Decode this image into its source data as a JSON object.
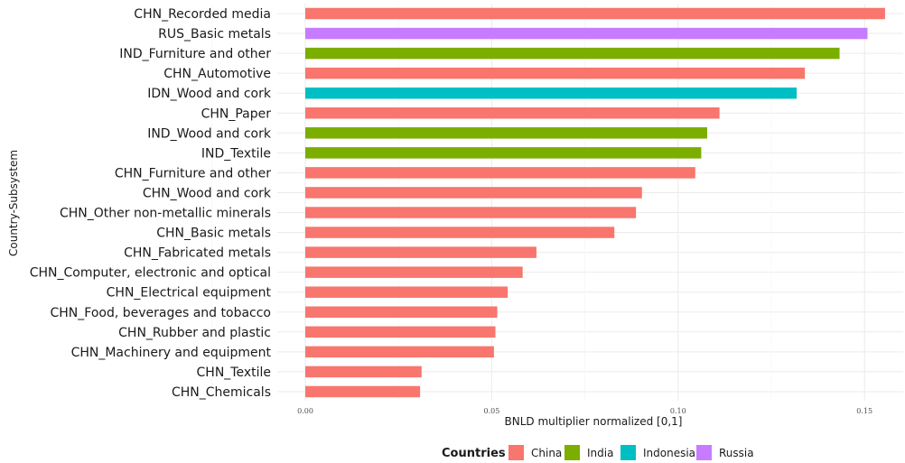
{
  "chart_data": {
    "type": "bar",
    "orientation": "horizontal",
    "title": "",
    "xlabel": "BNLD multiplier normalized [0,1]",
    "ylabel": "Country-Subsystem",
    "xlim": [
      0,
      0.156
    ],
    "x_ticks": [
      0.0,
      0.05,
      0.1,
      0.15
    ],
    "x_tick_labels": [
      "0.00",
      "0.05",
      "0.10",
      "0.15"
    ],
    "grid": true,
    "legend": {
      "title": "Countries",
      "placement": "bottom",
      "entries": [
        {
          "name": "China",
          "color": "#F8766D"
        },
        {
          "name": "India",
          "color": "#7CAE00"
        },
        {
          "name": "Indonesia",
          "color": "#00BFC4"
        },
        {
          "name": "Russia",
          "color": "#C77CFF"
        }
      ]
    },
    "bars": [
      {
        "label": "CHN_Recorded media",
        "country": "China",
        "value": 0.1555
      },
      {
        "label": "RUS_Basic metals",
        "country": "Russia",
        "value": 0.1508
      },
      {
        "label": "IND_Furniture and other",
        "country": "India",
        "value": 0.1433
      },
      {
        "label": "CHN_Automotive",
        "country": "China",
        "value": 0.134
      },
      {
        "label": "IDN_Wood and cork",
        "country": "Indonesia",
        "value": 0.1318
      },
      {
        "label": "CHN_Paper",
        "country": "China",
        "value": 0.1111
      },
      {
        "label": "IND_Wood and cork",
        "country": "India",
        "value": 0.1078
      },
      {
        "label": "IND_Textile",
        "country": "India",
        "value": 0.1062
      },
      {
        "label": "CHN_Furniture and other",
        "country": "China",
        "value": 0.1046
      },
      {
        "label": "CHN_Wood and cork",
        "country": "China",
        "value": 0.0903
      },
      {
        "label": "CHN_Other non-metallic minerals",
        "country": "China",
        "value": 0.0887
      },
      {
        "label": "CHN_Basic metals",
        "country": "China",
        "value": 0.0829
      },
      {
        "label": "CHN_Fabricated metals",
        "country": "China",
        "value": 0.062
      },
      {
        "label": "CHN_Computer, electronic and optical",
        "country": "China",
        "value": 0.0583
      },
      {
        "label": "CHN_Electrical equipment",
        "country": "China",
        "value": 0.0543
      },
      {
        "label": "CHN_Food, beverages and tobacco",
        "country": "China",
        "value": 0.0515
      },
      {
        "label": "CHN_Rubber and plastic",
        "country": "China",
        "value": 0.051
      },
      {
        "label": "CHN_Machinery and equipment",
        "country": "China",
        "value": 0.0506
      },
      {
        "label": "CHN_Textile",
        "country": "China",
        "value": 0.0312
      },
      {
        "label": "CHN_Chemicals",
        "country": "China",
        "value": 0.0308
      }
    ]
  }
}
